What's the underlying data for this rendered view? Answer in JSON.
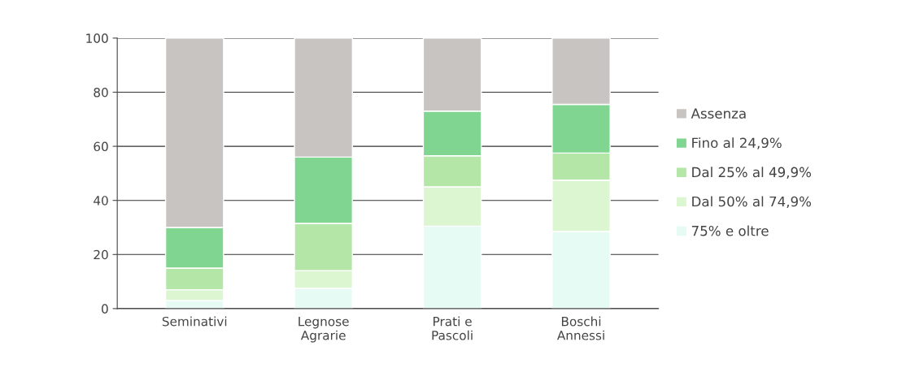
{
  "chart_data": {
    "type": "bar",
    "stacked": true,
    "categories": [
      "Seminativi",
      "Legnose\nAgrarie",
      "Prati e\nPascoli",
      "Boschi\nAnnessi"
    ],
    "series": [
      {
        "name": "75% e oltre",
        "color": "#e6fbf3",
        "values": [
          3,
          7.5,
          30.5,
          28.5
        ]
      },
      {
        "name": "Dal 50% al 74,9%",
        "color": "#dcf6d2",
        "values": [
          4,
          6.5,
          14.5,
          19
        ]
      },
      {
        "name": "Dal 25% al 49,9%",
        "color": "#b4e6a8",
        "values": [
          8,
          17.5,
          11.5,
          10
        ]
      },
      {
        "name": "Fino al 24,9%",
        "color": "#80d590",
        "values": [
          15,
          24.5,
          16.5,
          18
        ]
      },
      {
        "name": "Assenza",
        "color": "#c8c4c2",
        "values": [
          70,
          44,
          27,
          24.5
        ]
      }
    ],
    "ylim": [
      0,
      100
    ],
    "yticks": [
      0,
      20,
      40,
      60,
      80,
      100
    ],
    "grid": "y",
    "legend": "right"
  }
}
